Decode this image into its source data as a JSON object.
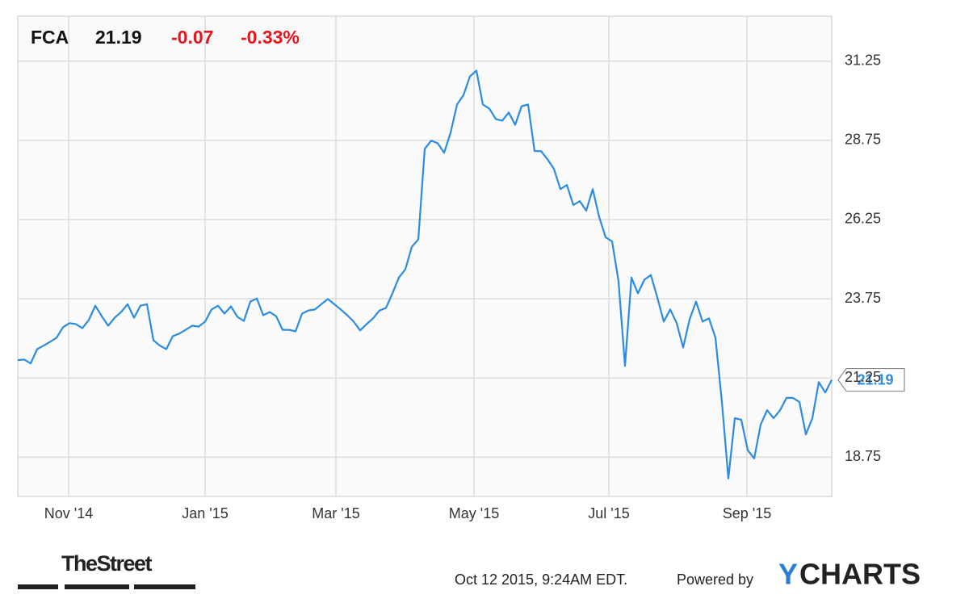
{
  "chart_data": {
    "type": "line",
    "ticker": "FCA",
    "price": "21.19",
    "change": "-0.07",
    "change_percent": "-0.33%",
    "color": "#2b8ce0",
    "grid": true,
    "values": [
      21.81,
      21.83,
      21.71,
      22.16,
      22.27,
      22.39,
      22.52,
      22.85,
      22.98,
      22.95,
      22.82,
      23.08,
      23.53,
      23.2,
      22.9,
      23.15,
      23.33,
      23.58,
      23.15,
      23.53,
      23.58,
      22.44,
      22.27,
      22.16,
      22.57,
      22.65,
      22.77,
      22.9,
      22.87,
      23.03,
      23.41,
      23.53,
      23.28,
      23.51,
      23.18,
      23.05,
      23.66,
      23.76,
      23.23,
      23.33,
      23.2,
      22.77,
      22.77,
      22.72,
      23.28,
      23.38,
      23.41,
      23.58,
      23.74,
      23.58,
      23.41,
      23.23,
      23.03,
      22.75,
      22.95,
      23.13,
      23.38,
      23.46,
      23.92,
      24.42,
      24.68,
      25.39,
      25.62,
      28.48,
      28.74,
      28.66,
      28.36,
      28.99,
      29.88,
      30.18,
      30.77,
      30.95,
      29.88,
      29.75,
      29.42,
      29.37,
      29.63,
      29.24,
      29.83,
      29.88,
      28.41,
      28.41,
      28.15,
      27.85,
      27.21,
      27.34,
      26.71,
      26.83,
      26.53,
      27.21,
      26.33,
      25.69,
      25.56,
      24.3,
      21.63,
      24.42,
      23.92,
      24.35,
      24.5,
      23.79,
      23.03,
      23.41,
      22.98,
      22.21,
      23.1,
      23.66,
      23.03,
      23.13,
      22.52,
      20.49,
      18.08,
      19.98,
      19.93,
      18.97,
      18.71,
      19.78,
      20.23,
      19.98,
      20.23,
      20.62,
      20.62,
      20.49,
      19.47,
      19.98,
      21.12,
      20.79,
      21.19
    ],
    "xlim": [
      0,
      126
    ],
    "xticks": [
      {
        "value": 7.875,
        "label": "Nov '14"
      },
      {
        "value": 29,
        "label": "Jan '15"
      },
      {
        "value": 49.25,
        "label": "Mar '15"
      },
      {
        "value": 70.625,
        "label": "May '15"
      },
      {
        "value": 91.5,
        "label": "Jul '15"
      },
      {
        "value": 112.875,
        "label": "Sep '15"
      }
    ],
    "ylim": [
      17.51,
      32.67
    ],
    "yticks": [
      18.75,
      21.25,
      23.75,
      26.25,
      28.75,
      31.25
    ]
  },
  "footer": {
    "source_logo": "TheStreet",
    "timestamp": "Oct 12 2015, 9:24AM EDT.",
    "powered_by": "Powered by",
    "logo_y": "Y",
    "logo_rest": "CHARTS"
  }
}
